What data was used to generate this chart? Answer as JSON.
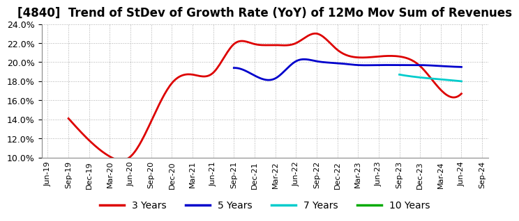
{
  "title": "[4840]  Trend of StDev of Growth Rate (YoY) of 12Mo Mov Sum of Revenues",
  "title_fontsize": 12,
  "background_color": "#ffffff",
  "plot_background_color": "#ffffff",
  "grid_color": "#999999",
  "ylim": [
    0.1,
    0.24
  ],
  "yticks": [
    0.1,
    0.12,
    0.14,
    0.16,
    0.18,
    0.2,
    0.22,
    0.24
  ],
  "series": {
    "3 Years": {
      "color": "#dd0000",
      "linewidth": 2.0,
      "points": [
        [
          1,
          0.141
        ],
        [
          2,
          0.118
        ],
        [
          3,
          0.101
        ],
        [
          4,
          0.101
        ],
        [
          5,
          0.138
        ],
        [
          6,
          0.178
        ],
        [
          7,
          0.187
        ],
        [
          8,
          0.189
        ],
        [
          9,
          0.219
        ],
        [
          10,
          0.219
        ],
        [
          11,
          0.218
        ],
        [
          12,
          0.22
        ],
        [
          13,
          0.23
        ],
        [
          14,
          0.213
        ],
        [
          15,
          0.205
        ],
        [
          16,
          0.206
        ],
        [
          17,
          0.206
        ],
        [
          18,
          0.196
        ],
        [
          19,
          0.171
        ],
        [
          20,
          0.167
        ]
      ]
    },
    "5 Years": {
      "color": "#0000cc",
      "linewidth": 2.0,
      "points": [
        [
          9,
          0.194
        ],
        [
          10,
          0.186
        ],
        [
          11,
          0.183
        ],
        [
          12,
          0.201
        ],
        [
          13,
          0.201
        ],
        [
          14,
          0.199
        ],
        [
          15,
          0.197
        ],
        [
          16,
          0.197
        ],
        [
          17,
          0.197
        ],
        [
          18,
          0.197
        ],
        [
          19,
          0.196
        ],
        [
          20,
          0.195
        ]
      ]
    },
    "7 Years": {
      "color": "#00cccc",
      "linewidth": 2.0,
      "points": [
        [
          17,
          0.187
        ],
        [
          18,
          0.184
        ],
        [
          19,
          0.182
        ],
        [
          20,
          0.18
        ]
      ]
    },
    "10 Years": {
      "color": "#00aa00",
      "linewidth": 2.0,
      "points": []
    }
  },
  "xtick_labels": [
    "Jun-19",
    "Sep-19",
    "Dec-19",
    "Mar-20",
    "Jun-20",
    "Sep-20",
    "Dec-20",
    "Mar-21",
    "Jun-21",
    "Sep-21",
    "Dec-21",
    "Mar-22",
    "Jun-22",
    "Sep-22",
    "Dec-22",
    "Mar-23",
    "Jun-23",
    "Sep-23",
    "Dec-23",
    "Mar-24",
    "Jun-24",
    "Sep-24"
  ],
  "legend_labels": [
    "3 Years",
    "5 Years",
    "7 Years",
    "10 Years"
  ],
  "legend_colors": [
    "#dd0000",
    "#0000cc",
    "#00cccc",
    "#00aa00"
  ]
}
